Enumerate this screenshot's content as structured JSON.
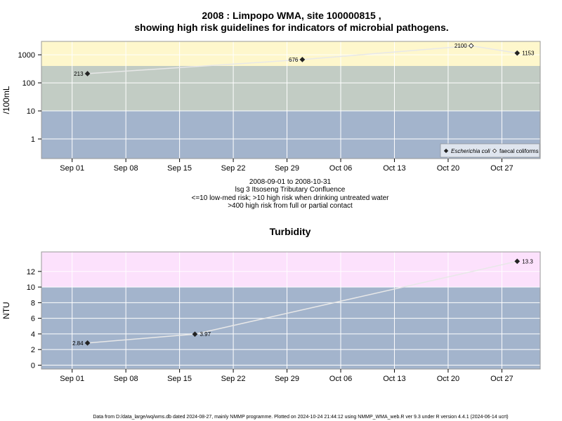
{
  "title_line1": "2008 : Limpopo WMA, site 100000815 ,",
  "title_line2": "showing high risk guidelines for indicators of microbial pathogens.",
  "subtitle_lines": [
    "2008-09-01 to 2008-10-31",
    "lsg 3 Itsoseng Tributary Confluence",
    "<=10 low-med risk; >10 high risk when drinking untreated water",
    ">400 high risk from full or partial contact"
  ],
  "footer": "Data from D:/data_large/wq/wms.db dated 2024-08-27, mainly NMMP programme. Plotted on 2024-10-24 21:44:12 using NMMP_WMA_web.R ver 9.3 under R version 4.4.1 (2024-06-14 ucrt)",
  "colors": {
    "band_high": "#fef7cc",
    "band_mid": "#c2ccc4",
    "band_low": "#a3b4cc",
    "turb_high": "#fce1fc",
    "line": "#e8e8e8",
    "grid": "#ffffff"
  },
  "chart_data": [
    {
      "type": "line",
      "title": "",
      "xlabel": "",
      "ylabel": "/100mL",
      "yscale": "log",
      "ylim": [
        0.2,
        3000
      ],
      "xlim": [
        "2008-08-28",
        "2008-11-01"
      ],
      "x_ticks": [
        "2008-09-01",
        "2008-09-08",
        "2008-09-15",
        "2008-09-22",
        "2008-09-29",
        "2008-10-06",
        "2008-10-13",
        "2008-10-20",
        "2008-10-27"
      ],
      "x_tick_labels": [
        "Sep 01",
        "Sep 08",
        "Sep 15",
        "Sep 22",
        "Sep 29",
        "Oct 06",
        "Oct 13",
        "Oct 20",
        "Oct 27"
      ],
      "y_ticks": [
        1,
        10,
        100,
        1000
      ],
      "y_tick_labels": [
        "1",
        "10",
        "100",
        "1000"
      ],
      "bands": [
        {
          "from": 400,
          "to": 3000,
          "color": "#fef7cc"
        },
        {
          "from": 10,
          "to": 400,
          "color": "#c2ccc4"
        },
        {
          "from": 0.2,
          "to": 10,
          "color": "#a3b4cc"
        }
      ],
      "grid": true,
      "legend_position": "bottom-right",
      "series": [
        {
          "name": "Escherichia coli",
          "marker": "filled-diamond",
          "x": [
            "2008-09-03",
            "2008-10-01",
            "2008-10-29"
          ],
          "values": [
            213,
            676,
            1153
          ],
          "labels": [
            "213",
            "676",
            "1153"
          ],
          "label_sides": [
            "left",
            "left",
            "right"
          ]
        },
        {
          "name": "faecal coliforms",
          "marker": "open-diamond",
          "x": [
            "2008-10-23"
          ],
          "values": [
            2100
          ],
          "labels": [
            "2100"
          ],
          "label_sides": [
            "left"
          ]
        }
      ]
    },
    {
      "type": "line",
      "title": "Turbidity",
      "xlabel": "",
      "ylabel": "NTU",
      "ylim": [
        -0.5,
        14.5
      ],
      "xlim": [
        "2008-08-28",
        "2008-11-01"
      ],
      "x_ticks": [
        "2008-09-01",
        "2008-09-08",
        "2008-09-15",
        "2008-09-22",
        "2008-09-29",
        "2008-10-06",
        "2008-10-13",
        "2008-10-20",
        "2008-10-27"
      ],
      "x_tick_labels": [
        "Sep 01",
        "Sep 08",
        "Sep 15",
        "Sep 22",
        "Sep 29",
        "Oct 06",
        "Oct 13",
        "Oct 20",
        "Oct 27"
      ],
      "y_ticks": [
        0,
        2,
        4,
        6,
        8,
        10,
        12
      ],
      "y_tick_labels": [
        "0",
        "2",
        "4",
        "6",
        "8",
        "10",
        "12"
      ],
      "bands": [
        {
          "from": 10,
          "to": 14.5,
          "color": "#fce1fc"
        },
        {
          "from": -0.5,
          "to": 10,
          "color": "#a3b4cc"
        }
      ],
      "grid": true,
      "series": [
        {
          "marker": "filled-diamond",
          "x": [
            "2008-09-03",
            "2008-09-17",
            "2008-10-29"
          ],
          "values": [
            2.84,
            3.97,
            13.3
          ],
          "labels": [
            "2.84",
            "3.97",
            "13.3"
          ],
          "label_sides": [
            "left",
            "right",
            "right"
          ]
        }
      ]
    }
  ]
}
